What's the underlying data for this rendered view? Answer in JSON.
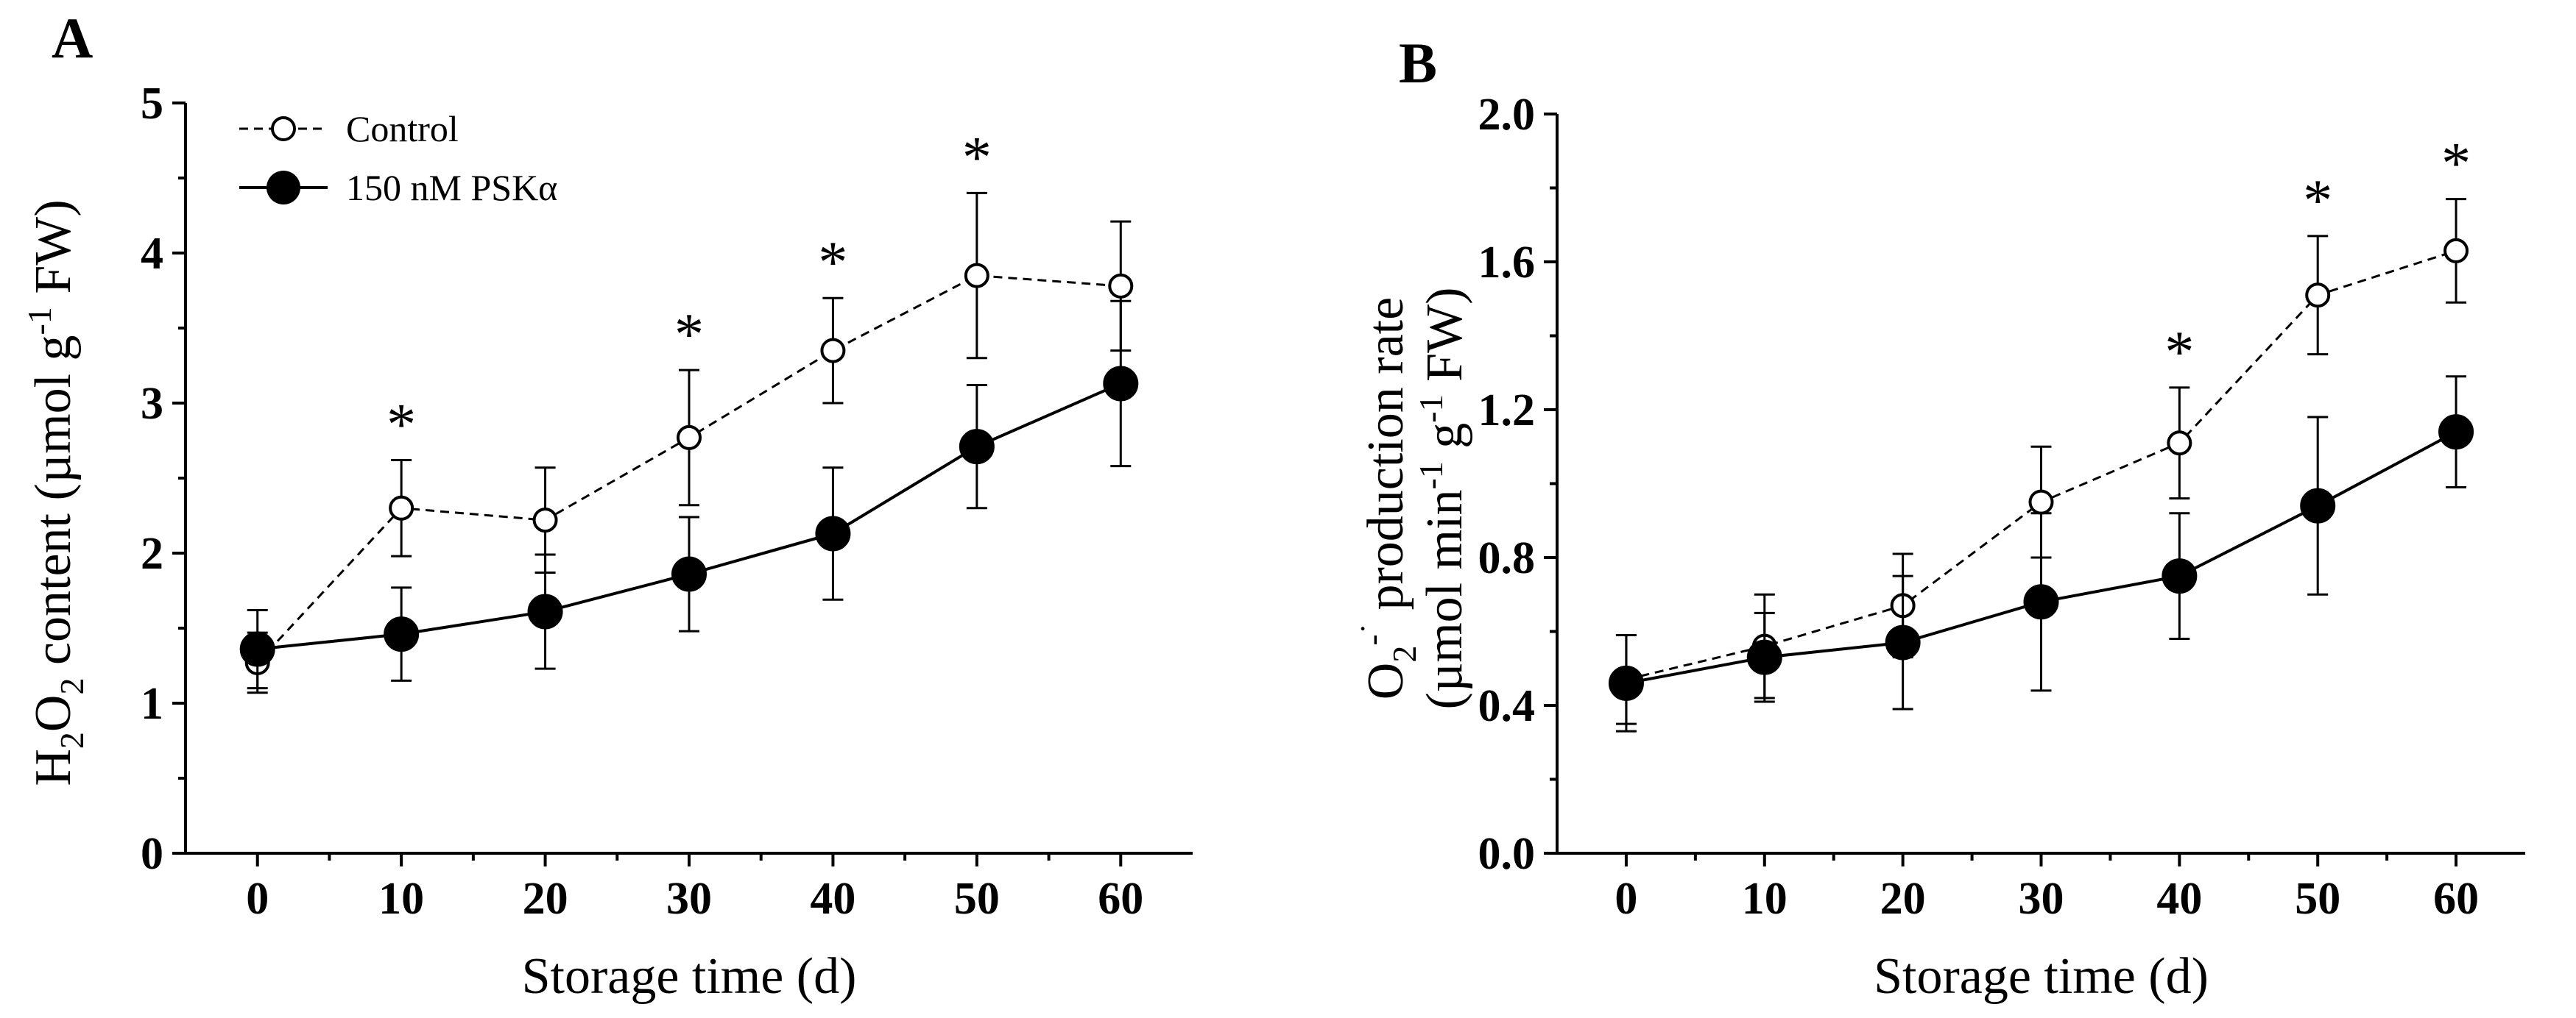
{
  "chart_data": [
    {
      "type": "line",
      "panel_label": "A",
      "x": [
        0,
        10,
        20,
        30,
        40,
        50,
        60
      ],
      "xticks": [
        0,
        10,
        20,
        30,
        40,
        50,
        60
      ],
      "xlim": [
        -5,
        65
      ],
      "xlabel": "Storage time (d)",
      "ylabel_parts": [
        "H",
        "2",
        "O",
        "2",
        " content (µmol g",
        "-1",
        " FW)"
      ],
      "ylim": [
        0,
        5
      ],
      "yticks": [
        "0",
        "1",
        "2",
        "3",
        "4",
        "5"
      ],
      "grid": false,
      "legend_position": "top-left",
      "series": [
        {
          "name": "Control",
          "style": "dashed",
          "marker": "open-circle",
          "values": [
            1.27,
            2.3,
            2.22,
            2.77,
            3.35,
            3.85,
            3.78
          ],
          "error": [
            0.2,
            0.32,
            0.35,
            0.45,
            0.35,
            0.55,
            0.43
          ]
        },
        {
          "name": "150 nM PSKα",
          "style": "solid",
          "marker": "filled-circle",
          "values": [
            1.36,
            1.46,
            1.61,
            1.86,
            2.13,
            2.71,
            3.13
          ],
          "error": [
            0.26,
            0.31,
            0.38,
            0.38,
            0.44,
            0.41,
            0.55
          ]
        }
      ],
      "significance": [
        {
          "x": 10,
          "label": "*"
        },
        {
          "x": 30,
          "label": "*"
        },
        {
          "x": 40,
          "label": "*"
        },
        {
          "x": 50,
          "label": "*"
        }
      ]
    },
    {
      "type": "line",
      "panel_label": "B",
      "x": [
        0,
        10,
        20,
        30,
        40,
        50,
        60
      ],
      "xticks": [
        0,
        10,
        20,
        30,
        40,
        50,
        60
      ],
      "xlim": [
        -5,
        65
      ],
      "xlabel": "Storage time (d)",
      "ylabel_line1_parts": [
        "O",
        "2",
        "-˙",
        " production rate"
      ],
      "ylabel_line2_parts": [
        "(µmol min",
        "-1",
        " g",
        "-1",
        " FW)"
      ],
      "ylim": [
        0,
        2.0
      ],
      "yticks": [
        "0.0",
        "0.4",
        "0.8",
        "1.2",
        "1.6",
        "2.0"
      ],
      "grid": false,
      "series": [
        {
          "name": "Control",
          "style": "dashed",
          "marker": "open-circle",
          "values": [
            0.47,
            0.56,
            0.67,
            0.95,
            1.11,
            1.51,
            1.63
          ],
          "error": [
            0.12,
            0.14,
            0.14,
            0.15,
            0.15,
            0.16,
            0.14
          ]
        },
        {
          "name": "150 nM PSKα",
          "style": "solid",
          "marker": "filled-circle",
          "values": [
            0.46,
            0.53,
            0.57,
            0.68,
            0.75,
            0.94,
            1.14
          ],
          "error": [
            0.13,
            0.12,
            0.18,
            0.24,
            0.17,
            0.24,
            0.15
          ]
        }
      ],
      "significance": [
        {
          "x": 40,
          "label": "*"
        },
        {
          "x": 50,
          "label": "*"
        },
        {
          "x": 60,
          "label": "*"
        }
      ]
    }
  ]
}
